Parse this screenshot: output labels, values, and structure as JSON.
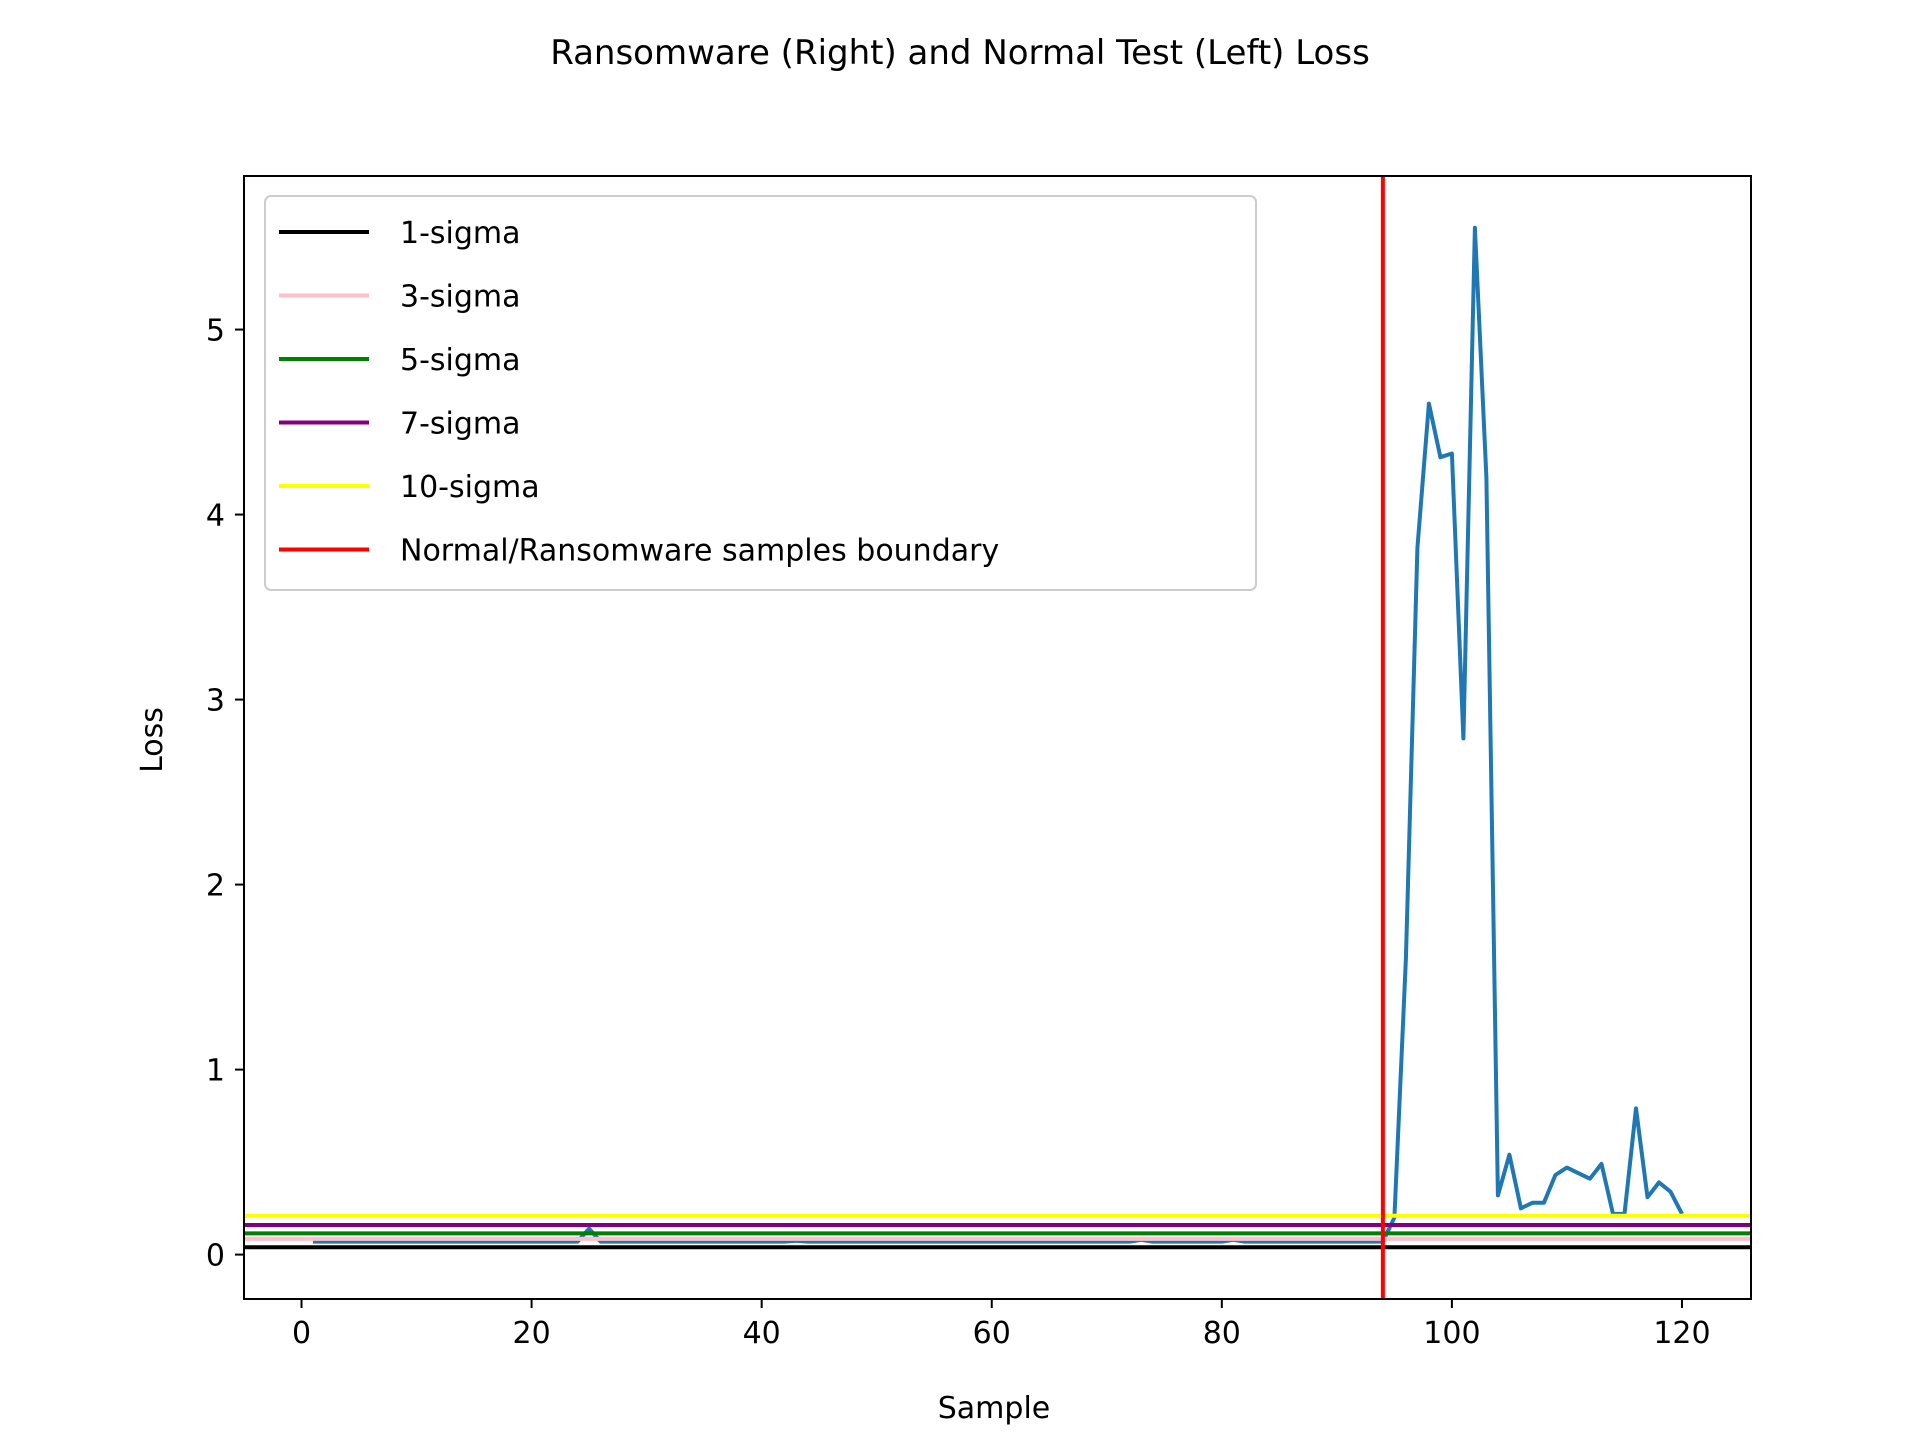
{
  "chart_data": {
    "type": "line",
    "title": "Ransomware (Right) and Normal Test (Left) Loss",
    "xlabel": "Sample",
    "ylabel": "Loss",
    "xlim": [
      -5,
      126
    ],
    "ylim": [
      -0.24,
      5.83
    ],
    "xticks": [
      0,
      20,
      40,
      60,
      80,
      100,
      120
    ],
    "yticks": [
      0,
      1,
      2,
      3,
      4,
      5
    ],
    "grid": false,
    "legend_position": "upper-left",
    "series": [
      {
        "color": "#1f77b4",
        "x": [
          1,
          2,
          3,
          4,
          5,
          6,
          7,
          8,
          9,
          10,
          11,
          12,
          13,
          14,
          15,
          16,
          17,
          18,
          19,
          20,
          21,
          22,
          23,
          24,
          25,
          26,
          27,
          28,
          29,
          30,
          31,
          32,
          33,
          34,
          35,
          36,
          37,
          38,
          39,
          40,
          41,
          42,
          43,
          44,
          45,
          46,
          47,
          48,
          49,
          50,
          51,
          52,
          53,
          54,
          55,
          56,
          57,
          58,
          59,
          60,
          61,
          62,
          63,
          64,
          65,
          66,
          67,
          68,
          69,
          70,
          71,
          72,
          73,
          74,
          75,
          76,
          77,
          78,
          79,
          80,
          81,
          82,
          83,
          84,
          85,
          86,
          87,
          88,
          89,
          90,
          91,
          92,
          93,
          94,
          95,
          96,
          97,
          98,
          99,
          100,
          101,
          102,
          103,
          104,
          105,
          106,
          107,
          108,
          109,
          110,
          111,
          112,
          113,
          114,
          115,
          116,
          117,
          118,
          119,
          120
        ],
        "y": [
          0.07,
          0.07,
          0.07,
          0.07,
          0.07,
          0.07,
          0.07,
          0.07,
          0.07,
          0.07,
          0.07,
          0.07,
          0.07,
          0.07,
          0.07,
          0.07,
          0.07,
          0.07,
          0.07,
          0.07,
          0.07,
          0.07,
          0.07,
          0.07,
          0.14,
          0.07,
          0.07,
          0.07,
          0.07,
          0.07,
          0.07,
          0.07,
          0.07,
          0.07,
          0.07,
          0.07,
          0.07,
          0.07,
          0.07,
          0.07,
          0.07,
          0.07,
          0.075,
          0.07,
          0.07,
          0.07,
          0.07,
          0.07,
          0.07,
          0.07,
          0.07,
          0.07,
          0.07,
          0.07,
          0.07,
          0.07,
          0.07,
          0.07,
          0.07,
          0.07,
          0.07,
          0.07,
          0.07,
          0.07,
          0.07,
          0.07,
          0.07,
          0.07,
          0.07,
          0.07,
          0.07,
          0.07,
          0.08,
          0.07,
          0.07,
          0.07,
          0.07,
          0.07,
          0.07,
          0.07,
          0.08,
          0.07,
          0.07,
          0.07,
          0.07,
          0.07,
          0.07,
          0.07,
          0.07,
          0.07,
          0.07,
          0.07,
          0.07,
          0.07,
          0.2,
          1.6,
          3.82,
          4.6,
          4.31,
          4.33,
          2.79,
          5.55,
          4.2,
          0.32,
          0.54,
          0.25,
          0.28,
          0.28,
          0.43,
          0.47,
          0.44,
          0.41,
          0.49,
          0.22,
          0.22,
          0.79,
          0.31,
          0.39,
          0.34,
          0.22
        ]
      }
    ],
    "hlines": [
      {
        "label": "1-sigma",
        "y": 0.04,
        "color": "#000000"
      },
      {
        "label": "3-sigma",
        "y": 0.085,
        "color": "#ffc0cb"
      },
      {
        "label": "5-sigma",
        "y": 0.115,
        "color": "#008000"
      },
      {
        "label": "7-sigma",
        "y": 0.16,
        "color": "#800080"
      },
      {
        "label": "10-sigma",
        "y": 0.21,
        "color": "#ffff00"
      }
    ],
    "vlines": [
      {
        "label": "Normal/Ransomware samples boundary",
        "x": 94,
        "color": "#ff0000"
      }
    ]
  }
}
